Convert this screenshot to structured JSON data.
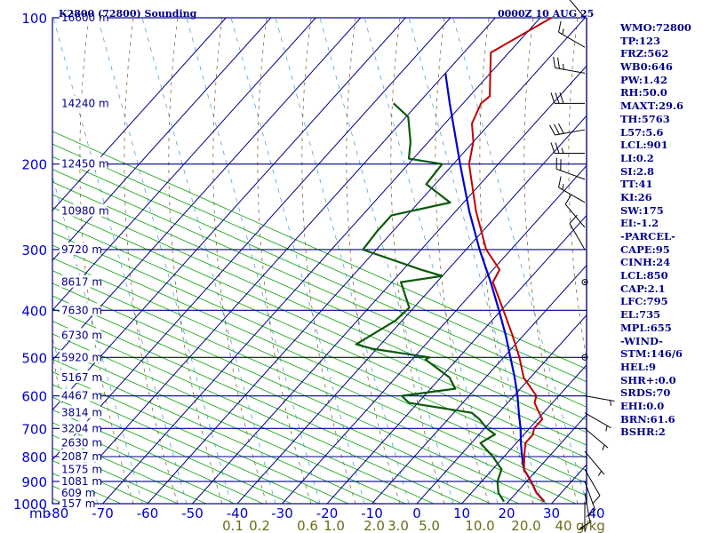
{
  "chart_data": {
    "type": "skew-t log-p sounding",
    "title": "K2800 (72800) Sounding",
    "datetime": "0000Z 10 AUG 25",
    "pressure_axis_label": "mb",
    "pressure_ticks": [
      100,
      200,
      300,
      400,
      500,
      600,
      700,
      800,
      900,
      1000
    ],
    "temperature_ticks": [
      -80,
      -70,
      -60,
      -50,
      -40,
      -30,
      -20,
      -10,
      0,
      10,
      20,
      30,
      40
    ],
    "mixing_ratio_unit": "g/kg",
    "mixing_ratio_labels": [
      "0.1",
      "0.2",
      "0.6",
      "1.0",
      "2.0",
      "3.0",
      "5.0",
      "10.0",
      "20.0",
      "40"
    ],
    "height_labels": [
      {
        "p": 100,
        "text": "16600 m"
      },
      {
        "p": 150,
        "text": "14240 m"
      },
      {
        "p": 200,
        "text": "12450 m"
      },
      {
        "p": 250,
        "text": "10980 m"
      },
      {
        "p": 300,
        "text": "9720 m"
      },
      {
        "p": 350,
        "text": "8617 m"
      },
      {
        "p": 400,
        "text": "7630 m"
      },
      {
        "p": 450,
        "text": "6730 m"
      },
      {
        "p": 500,
        "text": "5920 m"
      },
      {
        "p": 550,
        "text": "5167 m"
      },
      {
        "p": 600,
        "text": "4467 m"
      },
      {
        "p": 650,
        "text": "3814 m"
      },
      {
        "p": 700,
        "text": "3204 m"
      },
      {
        "p": 750,
        "text": "2630 m"
      },
      {
        "p": 800,
        "text": "2087 m"
      },
      {
        "p": 850,
        "text": "1575 m"
      },
      {
        "p": 900,
        "text": "1081 m"
      },
      {
        "p": 950,
        "text": "609 m"
      },
      {
        "p": 1000,
        "text": "157 m"
      }
    ],
    "temperature_profile": [
      {
        "p": 990,
        "t": 28.0
      },
      {
        "p": 950,
        "t": 24.5
      },
      {
        "p": 900,
        "t": 21.0
      },
      {
        "p": 850,
        "t": 17.0
      },
      {
        "p": 800,
        "t": 14.5
      },
      {
        "p": 750,
        "t": 12.0
      },
      {
        "p": 720,
        "t": 12.0
      },
      {
        "p": 700,
        "t": 11.0
      },
      {
        "p": 670,
        "t": 11.0
      },
      {
        "p": 650,
        "t": 9.0
      },
      {
        "p": 620,
        "t": 6.0
      },
      {
        "p": 600,
        "t": 5.0
      },
      {
        "p": 550,
        "t": -1.5
      },
      {
        "p": 500,
        "t": -6.5
      },
      {
        "p": 450,
        "t": -12.5
      },
      {
        "p": 400,
        "t": -19.5
      },
      {
        "p": 350,
        "t": -27.5
      },
      {
        "p": 330,
        "t": -28.5
      },
      {
        "p": 300,
        "t": -35.5
      },
      {
        "p": 250,
        "t": -45.5
      },
      {
        "p": 200,
        "t": -56.5
      },
      {
        "p": 180,
        "t": -60.0
      },
      {
        "p": 165,
        "t": -64.0
      },
      {
        "p": 150,
        "t": -66.0
      },
      {
        "p": 145,
        "t": -65.5
      },
      {
        "p": 118,
        "t": -74.0
      },
      {
        "p": 100,
        "t": -67.5
      }
    ],
    "dewpoint_profile": [
      {
        "p": 990,
        "t": 19.0
      },
      {
        "p": 950,
        "t": 16.0
      },
      {
        "p": 900,
        "t": 13.5
      },
      {
        "p": 850,
        "t": 12.0
      },
      {
        "p": 800,
        "t": 7.5
      },
      {
        "p": 750,
        "t": 2.0
      },
      {
        "p": 720,
        "t": 3.5
      },
      {
        "p": 700,
        "t": 0.5
      },
      {
        "p": 670,
        "t": -3.0
      },
      {
        "p": 650,
        "t": -6.0
      },
      {
        "p": 620,
        "t": -22.0
      },
      {
        "p": 600,
        "t": -25.0
      },
      {
        "p": 580,
        "t": -14.5
      },
      {
        "p": 550,
        "t": -18.0
      },
      {
        "p": 505,
        "t": -27.0
      },
      {
        "p": 500,
        "t": -26.5
      },
      {
        "p": 480,
        "t": -41.0
      },
      {
        "p": 470,
        "t": -45.5
      },
      {
        "p": 420,
        "t": -41.5
      },
      {
        "p": 395,
        "t": -41.0
      },
      {
        "p": 350,
        "t": -48.0
      },
      {
        "p": 340,
        "t": -40.0
      },
      {
        "p": 330,
        "t": -46.0
      },
      {
        "p": 300,
        "t": -63.0
      },
      {
        "p": 275,
        "t": -63.5
      },
      {
        "p": 255,
        "t": -63.5
      },
      {
        "p": 240,
        "t": -53.0
      },
      {
        "p": 220,
        "t": -62.0
      },
      {
        "p": 200,
        "t": -62.5
      },
      {
        "p": 195,
        "t": -71.0
      },
      {
        "p": 180,
        "t": -74.0
      },
      {
        "p": 160,
        "t": -79.5
      },
      {
        "p": 150,
        "t": -85.5
      }
    ],
    "parcel_profile": [
      {
        "p": 990,
        "t": 28.0
      },
      {
        "p": 950,
        "t": 24.5
      },
      {
        "p": 900,
        "t": 21.0
      },
      {
        "p": 850,
        "t": 17.0
      },
      {
        "p": 800,
        "t": 14.0
      },
      {
        "p": 750,
        "t": 11.0
      },
      {
        "p": 700,
        "t": 8.0
      },
      {
        "p": 650,
        "t": 4.5
      },
      {
        "p": 600,
        "t": 0.8
      },
      {
        "p": 550,
        "t": -3.5
      },
      {
        "p": 500,
        "t": -8.5
      },
      {
        "p": 450,
        "t": -14.0
      },
      {
        "p": 400,
        "t": -20.5
      },
      {
        "p": 350,
        "t": -28.0
      },
      {
        "p": 300,
        "t": -37.0
      },
      {
        "p": 250,
        "t": -47.0
      },
      {
        "p": 200,
        "t": -58.5
      },
      {
        "p": 150,
        "t": -73.0
      },
      {
        "p": 130,
        "t": -80.0
      }
    ],
    "indices": [
      {
        "label": "WMO",
        "value": "72800"
      },
      {
        "label": "TP",
        "value": "123"
      },
      {
        "label": "FRZ",
        "value": "562"
      },
      {
        "label": "WB0",
        "value": "646"
      },
      {
        "label": "PW",
        "value": "1.42"
      },
      {
        "label": "RH",
        "value": "50.0"
      },
      {
        "label": "MAXT",
        "value": "29.6"
      },
      {
        "label": "TH",
        "value": "5763"
      },
      {
        "label": "L57",
        "value": "5.6"
      },
      {
        "label": "LCL",
        "value": "901"
      },
      {
        "label": "LI",
        "value": "0.2"
      },
      {
        "label": "SI",
        "value": "2.8"
      },
      {
        "label": "TT",
        "value": "41"
      },
      {
        "label": "KI",
        "value": "26"
      },
      {
        "label": "SW",
        "value": "175"
      },
      {
        "label": "EI",
        "value": "-1.2"
      },
      {
        "label": "",
        "value": "-PARCEL-"
      },
      {
        "label": "CAPE",
        "value": "95"
      },
      {
        "label": "CINH",
        "value": "24"
      },
      {
        "label": "LCL",
        "value": "850"
      },
      {
        "label": "CAP",
        "value": "2.1"
      },
      {
        "label": "LFC",
        "value": "795"
      },
      {
        "label": "EL",
        "value": "735"
      },
      {
        "label": "MPL",
        "value": "655"
      },
      {
        "label": "",
        "value": "-WIND-"
      },
      {
        "label": "STM",
        "value": "146/6"
      },
      {
        "label": "HEL",
        "value": "9"
      },
      {
        "label": "SHR+",
        "value": "0.0"
      },
      {
        "label": "SRDS",
        "value": "70"
      },
      {
        "label": "EHI",
        "value": "0.0"
      },
      {
        "label": "BRN",
        "value": "61.6"
      },
      {
        "label": "BSHR",
        "value": "2"
      }
    ],
    "wind_barbs": [
      {
        "p": 100,
        "dir": 320,
        "kt": 10
      },
      {
        "p": 115,
        "dir": 300,
        "kt": 15
      },
      {
        "p": 130,
        "dir": 280,
        "kt": 25
      },
      {
        "p": 150,
        "dir": 270,
        "kt": 30
      },
      {
        "p": 170,
        "dir": 260,
        "kt": 30
      },
      {
        "p": 190,
        "dir": 270,
        "kt": 25
      },
      {
        "p": 215,
        "dir": 290,
        "kt": 20
      },
      {
        "p": 240,
        "dir": 300,
        "kt": 15
      },
      {
        "p": 270,
        "dir": 320,
        "kt": 10
      },
      {
        "p": 300,
        "dir": 330,
        "kt": 10
      },
      {
        "p": 350,
        "dir": 0,
        "kt": 0
      },
      {
        "p": 500,
        "dir": 0,
        "kt": 0
      },
      {
        "p": 600,
        "dir": 100,
        "kt": 5
      },
      {
        "p": 650,
        "dir": 120,
        "kt": 5
      },
      {
        "p": 700,
        "dir": 130,
        "kt": 5
      },
      {
        "p": 780,
        "dir": 140,
        "kt": 5
      },
      {
        "p": 850,
        "dir": 150,
        "kt": 10
      },
      {
        "p": 900,
        "dir": 160,
        "kt": 10
      },
      {
        "p": 950,
        "dir": 170,
        "kt": 10
      },
      {
        "p": 990,
        "dir": 180,
        "kt": 5
      }
    ],
    "colors": {
      "axes": "#00008b",
      "dry_adiabats": "#22aa22",
      "moist_adiabats": "#8a6a3a",
      "mixing_ratio": "#3399dd",
      "temperature": "#c00000",
      "dewpoint": "#0a5a0a",
      "parcel": "#0000cc",
      "labels_blue": "#0000cd",
      "labels_mixing": "#6b6b1e"
    }
  }
}
